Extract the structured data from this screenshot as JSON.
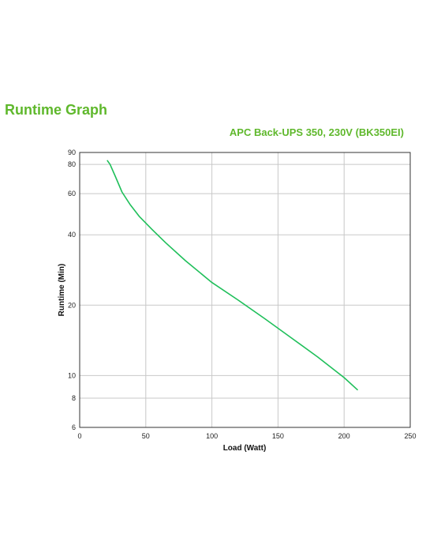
{
  "header": {
    "title": "Runtime Graph"
  },
  "chart_data": {
    "type": "line",
    "title": "APC Back-UPS 350, 230V (BK350EI)",
    "xlabel": "Load (Watt)",
    "ylabel": "Runtime (Min)",
    "xlim": [
      0,
      250
    ],
    "ylim": [
      6,
      90
    ],
    "yscale": "log",
    "grid": true,
    "xticks": [
      0,
      50,
      100,
      150,
      200,
      250
    ],
    "yticks": [
      6,
      8,
      10,
      20,
      40,
      60,
      80,
      90
    ],
    "line_color": "#1fbf5a",
    "title_color": "#5fb82c",
    "series": [
      {
        "x": [
          21,
          23,
          27,
          32,
          38,
          45,
          55,
          65,
          80,
          100,
          120,
          140,
          160,
          180,
          200,
          210
        ],
        "values": [
          83,
          80,
          71,
          61,
          54,
          48,
          42,
          37,
          31,
          25,
          21,
          17.5,
          14.5,
          12,
          9.8,
          8.7
        ]
      }
    ]
  }
}
